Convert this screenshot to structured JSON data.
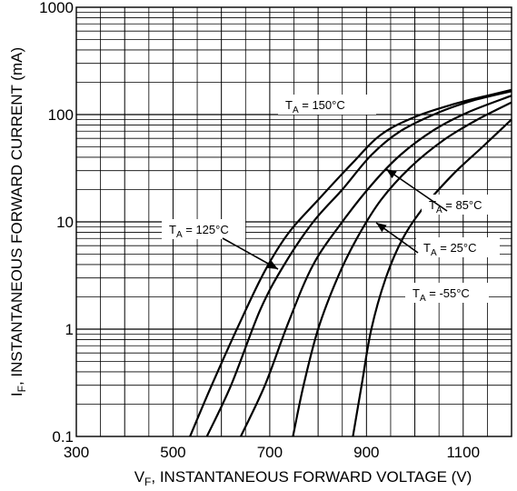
{
  "chart_data": {
    "type": "line",
    "xlabel": {
      "main": "V",
      "sub": "F",
      "rest": ", INSTANTANEOUS FORWARD VOLTAGE (V)"
    },
    "ylabel": {
      "main": "I",
      "sub": "F",
      "rest": ", INSTANTANEOUS FORWARD CURRENT (mA)"
    },
    "x_ticks": [
      300,
      500,
      700,
      900,
      1100
    ],
    "x_tick_labels": [
      "300",
      "500",
      "700",
      "900",
      "1100"
    ],
    "y_ticks": [
      0.1,
      1,
      10,
      100,
      1000
    ],
    "y_tick_labels": [
      "0.1",
      "1",
      "10",
      "100",
      "1000"
    ],
    "xlim": [
      300,
      1200
    ],
    "ylim": [
      0.1,
      1000
    ],
    "y_scale": "log",
    "grid": true,
    "series": [
      {
        "label_main": "T",
        "label_sub": "A",
        "label_rest": " = 150°C",
        "x": [
          535,
          580,
          640,
          690,
          740,
          800,
          870,
          930,
          1000,
          1080,
          1150,
          1200
        ],
        "y": [
          0.1,
          0.3,
          1.2,
          3.5,
          8,
          16,
          35,
          65,
          95,
          125,
          150,
          170
        ]
      },
      {
        "label_main": "T",
        "label_sub": "A",
        "label_rest": " = 125°C",
        "x": [
          570,
          620,
          680,
          730,
          790,
          850,
          910,
          970,
          1050,
          1120,
          1200
        ],
        "y": [
          0.1,
          0.3,
          1.5,
          4,
          10,
          20,
          42,
          70,
          105,
          135,
          165
        ]
      },
      {
        "label_main": "T",
        "label_sub": "A",
        "label_rest": " = 85°C",
        "x": [
          640,
          690,
          740,
          790,
          850,
          910,
          970,
          1040,
          1110,
          1200
        ],
        "y": [
          0.1,
          0.3,
          1.2,
          4,
          10,
          22,
          42,
          72,
          105,
          150
        ]
      },
      {
        "label_main": "T",
        "label_sub": "A",
        "label_rest": " = 25°C",
        "x": [
          748,
          770,
          800,
          840,
          880,
          930,
          990,
          1060,
          1130,
          1200
        ],
        "y": [
          0.1,
          0.3,
          1,
          3,
          7,
          16,
          32,
          58,
          90,
          130
        ]
      },
      {
        "label_main": "T",
        "label_sub": "A",
        "label_rest": " = -55°C",
        "x": [
          872,
          890,
          910,
          940,
          975,
          1020,
          1080,
          1140,
          1200
        ],
        "y": [
          0.1,
          0.3,
          1,
          3,
          7,
          14,
          28,
          50,
          90
        ]
      }
    ],
    "annotations": [
      {
        "main": "T",
        "sub": "A",
        "rest": " = 150°C"
      },
      {
        "main": "T",
        "sub": "A",
        "rest": " = 125°C"
      },
      {
        "main": "T",
        "sub": "A",
        "rest": " = 85°C"
      },
      {
        "main": "T",
        "sub": "A",
        "rest": " = 25°C"
      },
      {
        "main": "T",
        "sub": "A",
        "rest": " = -55°C"
      }
    ]
  }
}
